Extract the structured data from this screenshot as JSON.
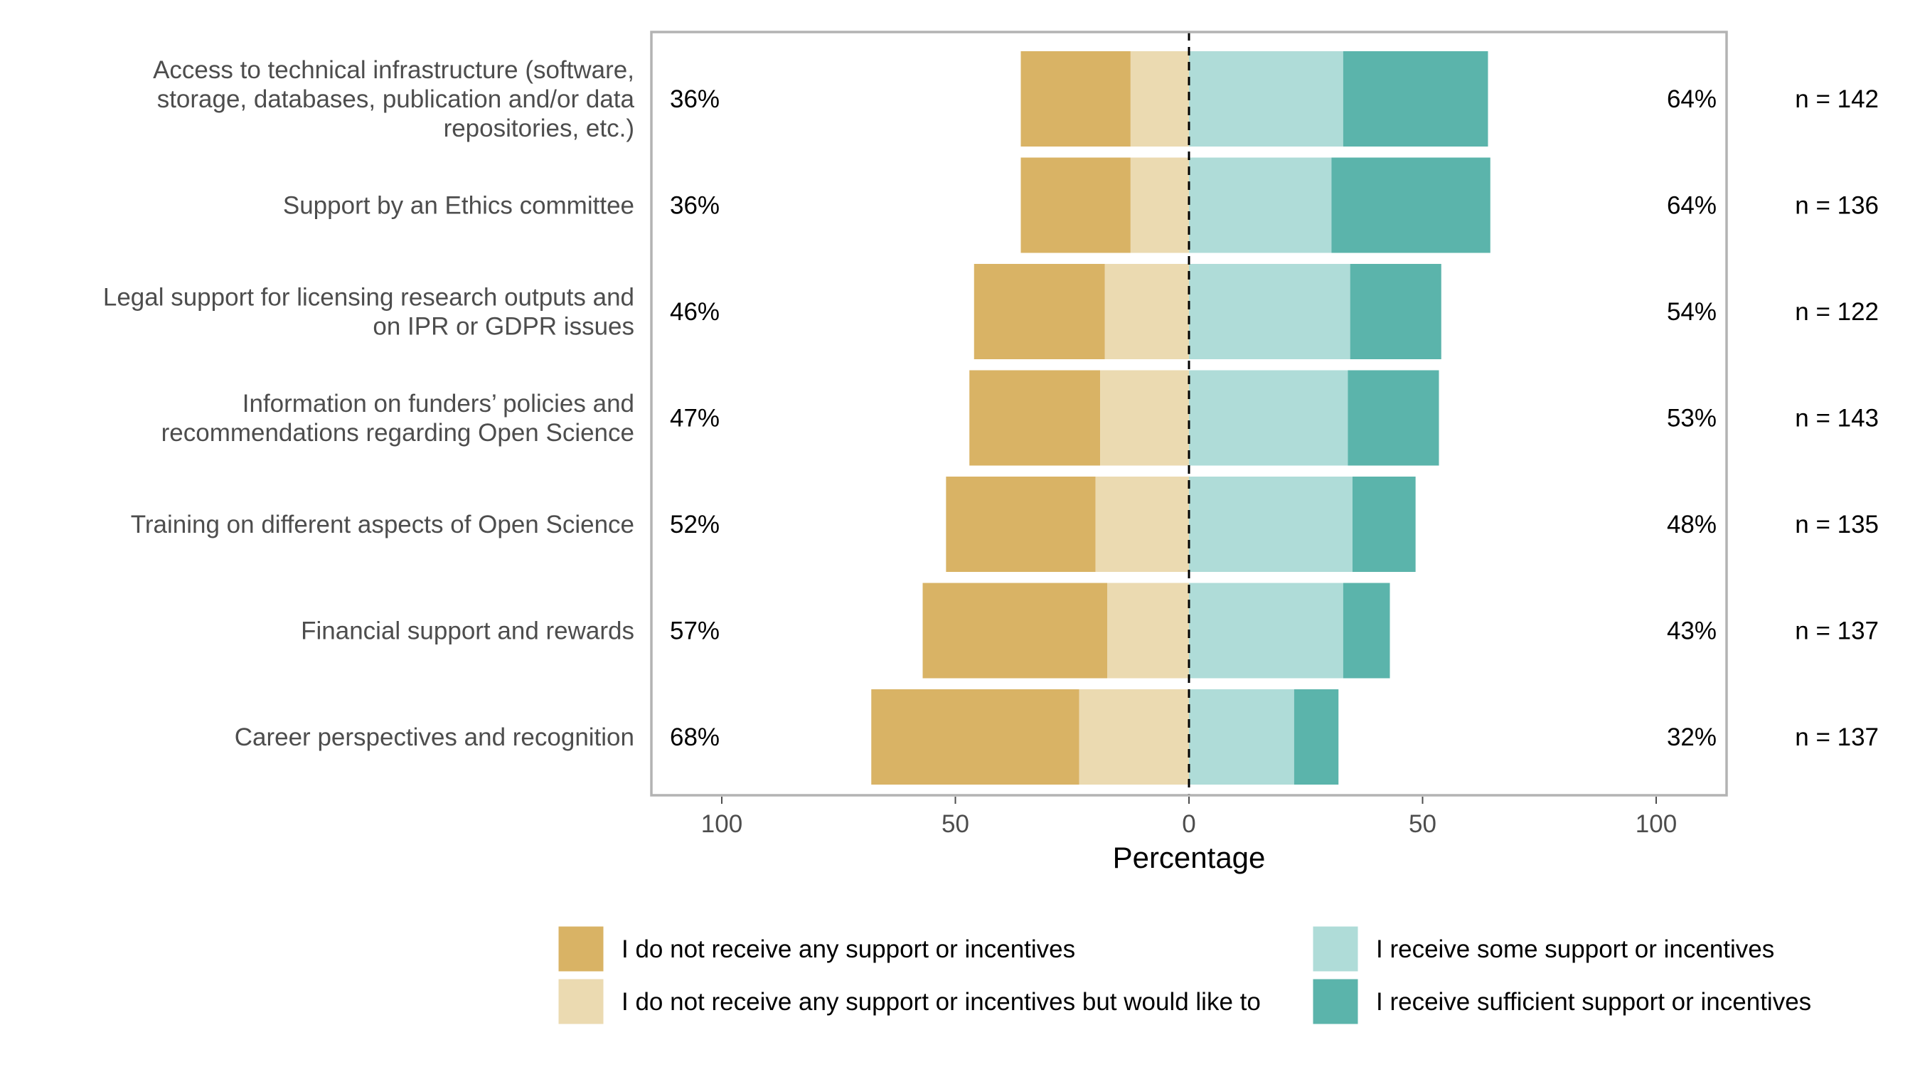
{
  "chart_data": {
    "type": "bar",
    "orientation": "horizontal-diverging",
    "xlabel": "Percentage",
    "xlim": [
      -115,
      115
    ],
    "x_ticks": [
      -100,
      -50,
      0,
      50,
      100
    ],
    "x_tick_labels": [
      "100",
      "50",
      "0",
      "50",
      "100"
    ],
    "grid": false,
    "legend_position": "bottom",
    "categories": [
      "Access to technical infrastructure (software, storage, databases, publication and/or data repositories, etc.)",
      "Support by an Ethics committee",
      "Legal support for licensing research outputs and on IPR or GDPR issues",
      "Information on funders’ policies and recommendations regarding Open Science",
      "Training on different aspects of Open Science",
      "Financial support and rewards",
      "Career perspectives and recognition"
    ],
    "category_lines": [
      [
        "Access to technical infrastructure (software,",
        "storage, databases, publication and/or data",
        "repositories, etc.)"
      ],
      [
        "Support by an Ethics committee"
      ],
      [
        "Legal support for licensing research outputs and",
        "on IPR or GDPR issues"
      ],
      [
        "Information on funders’ policies and",
        "recommendations regarding Open Science"
      ],
      [
        "Training on different aspects of Open Science"
      ],
      [
        "Financial support and rewards"
      ],
      [
        "Career perspectives and recognition"
      ]
    ],
    "series": [
      {
        "name": "I do not receive any support or incentives",
        "side": "negative",
        "color": "#d9b365",
        "values": [
          23.5,
          23.5,
          28,
          28,
          32,
          39.5,
          44.5
        ]
      },
      {
        "name": "I do not receive any support or incentives but would like to",
        "side": "negative",
        "color": "#ebdab1",
        "values": [
          12.5,
          12.5,
          18,
          19,
          20,
          17.5,
          23.5
        ]
      },
      {
        "name": "I receive some support or incentives",
        "side": "positive",
        "color": "#afdcd8",
        "values": [
          33,
          30.5,
          34.5,
          34,
          35,
          33,
          22.5
        ]
      },
      {
        "name": "I receive sufficient support or incentives",
        "side": "positive",
        "color": "#5bb4ab",
        "values": [
          31,
          34,
          19.5,
          19.5,
          13.5,
          10,
          9.5
        ]
      }
    ],
    "left_percent_labels": [
      "36%",
      "36%",
      "46%",
      "47%",
      "52%",
      "57%",
      "68%"
    ],
    "right_percent_labels": [
      "64%",
      "64%",
      "54%",
      "53%",
      "48%",
      "43%",
      "32%"
    ],
    "n_labels": [
      "n = 142",
      "n = 136",
      "n = 122",
      "n = 143",
      "n = 135",
      "n = 137",
      "n = 137"
    ]
  }
}
